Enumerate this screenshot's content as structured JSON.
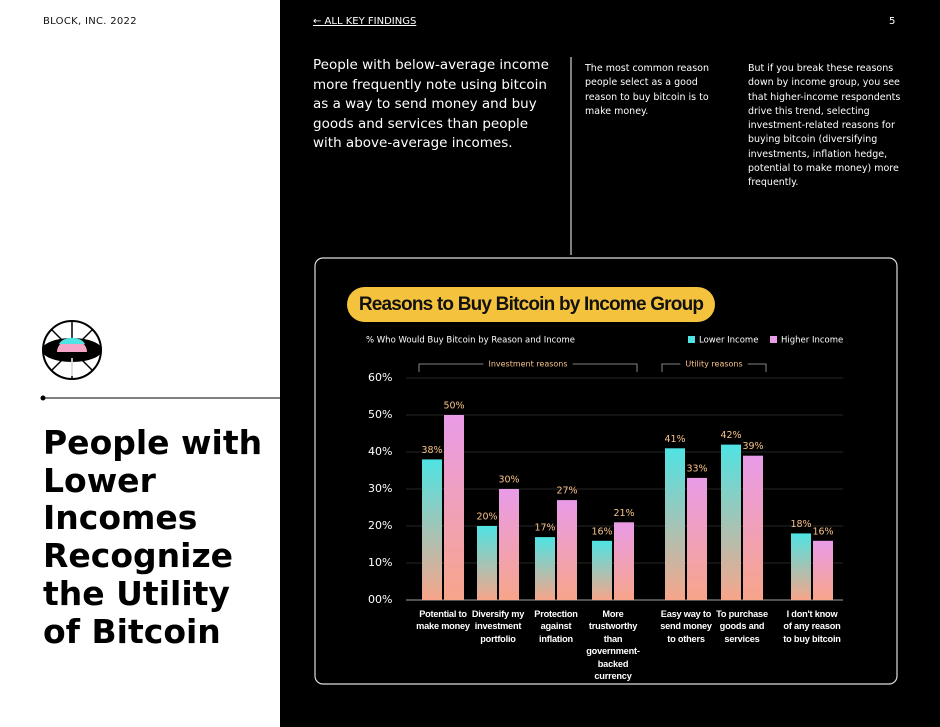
{
  "header": {
    "brand": "BLOCK, INC. 2022",
    "back_link": "← ALL KEY FINDINGS",
    "page_number": "5"
  },
  "lead": "People with below-average income more frequently note using bitcoin as a way to send money and buy goods and services than people with above-average incomes.",
  "columns": [
    "The most common reason people select as a good reason to buy bitcoin is to make money.",
    "But if you break these reasons down by income group, you see that higher-income respondents drive this trend, selecting investment-related reasons for buying bitcoin (diversifying investments, inflation hedge, potential to make money) more frequently."
  ],
  "heading": "People with Lower Incomes Recognize the Utility of Bitcoin",
  "chart_data": {
    "type": "bar",
    "title": "Reasons to Buy Bitcoin by Income Group",
    "subtitle": "% Who Would Buy Bitcoin by Reason and Income",
    "categories": [
      "Potential to make money",
      "Diversify my investment portfolio",
      "Protection against inflation",
      "More trustworthy than government-backed currency",
      "Easy way to send money to others",
      "To purchase goods and services",
      "I don't know of any reason to buy bitcoin"
    ],
    "groups": [
      {
        "label": "Investment reasons",
        "from": 0,
        "to": 3
      },
      {
        "label": "Utility reasons",
        "from": 4,
        "to": 5
      }
    ],
    "series": [
      {
        "name": "Lower Income",
        "color": "#4fe3e3",
        "values": [
          38,
          20,
          17,
          16,
          41,
          42,
          18
        ],
        "value_labels": [
          "38%",
          "20%",
          "17%",
          "16%",
          "41%",
          "42%",
          "18%"
        ]
      },
      {
        "name": "Higher Income",
        "color": "#e99be8",
        "values": [
          50,
          30,
          27,
          21,
          33,
          39,
          16
        ],
        "value_labels": [
          "50%",
          "30%",
          "27%",
          "21%",
          "33%",
          "39%",
          "16%"
        ]
      }
    ],
    "ylim": [
      0,
      60
    ],
    "yticks": [
      {
        "value": 0,
        "label": "00%"
      },
      {
        "value": 10,
        "label": "10%"
      },
      {
        "value": 20,
        "label": "20%"
      },
      {
        "value": 30,
        "label": "30%"
      },
      {
        "value": 40,
        "label": "40%"
      },
      {
        "value": 50,
        "label": "50%"
      },
      {
        "value": 60,
        "label": "60%"
      }
    ],
    "grid": true,
    "legend": "top-right"
  }
}
